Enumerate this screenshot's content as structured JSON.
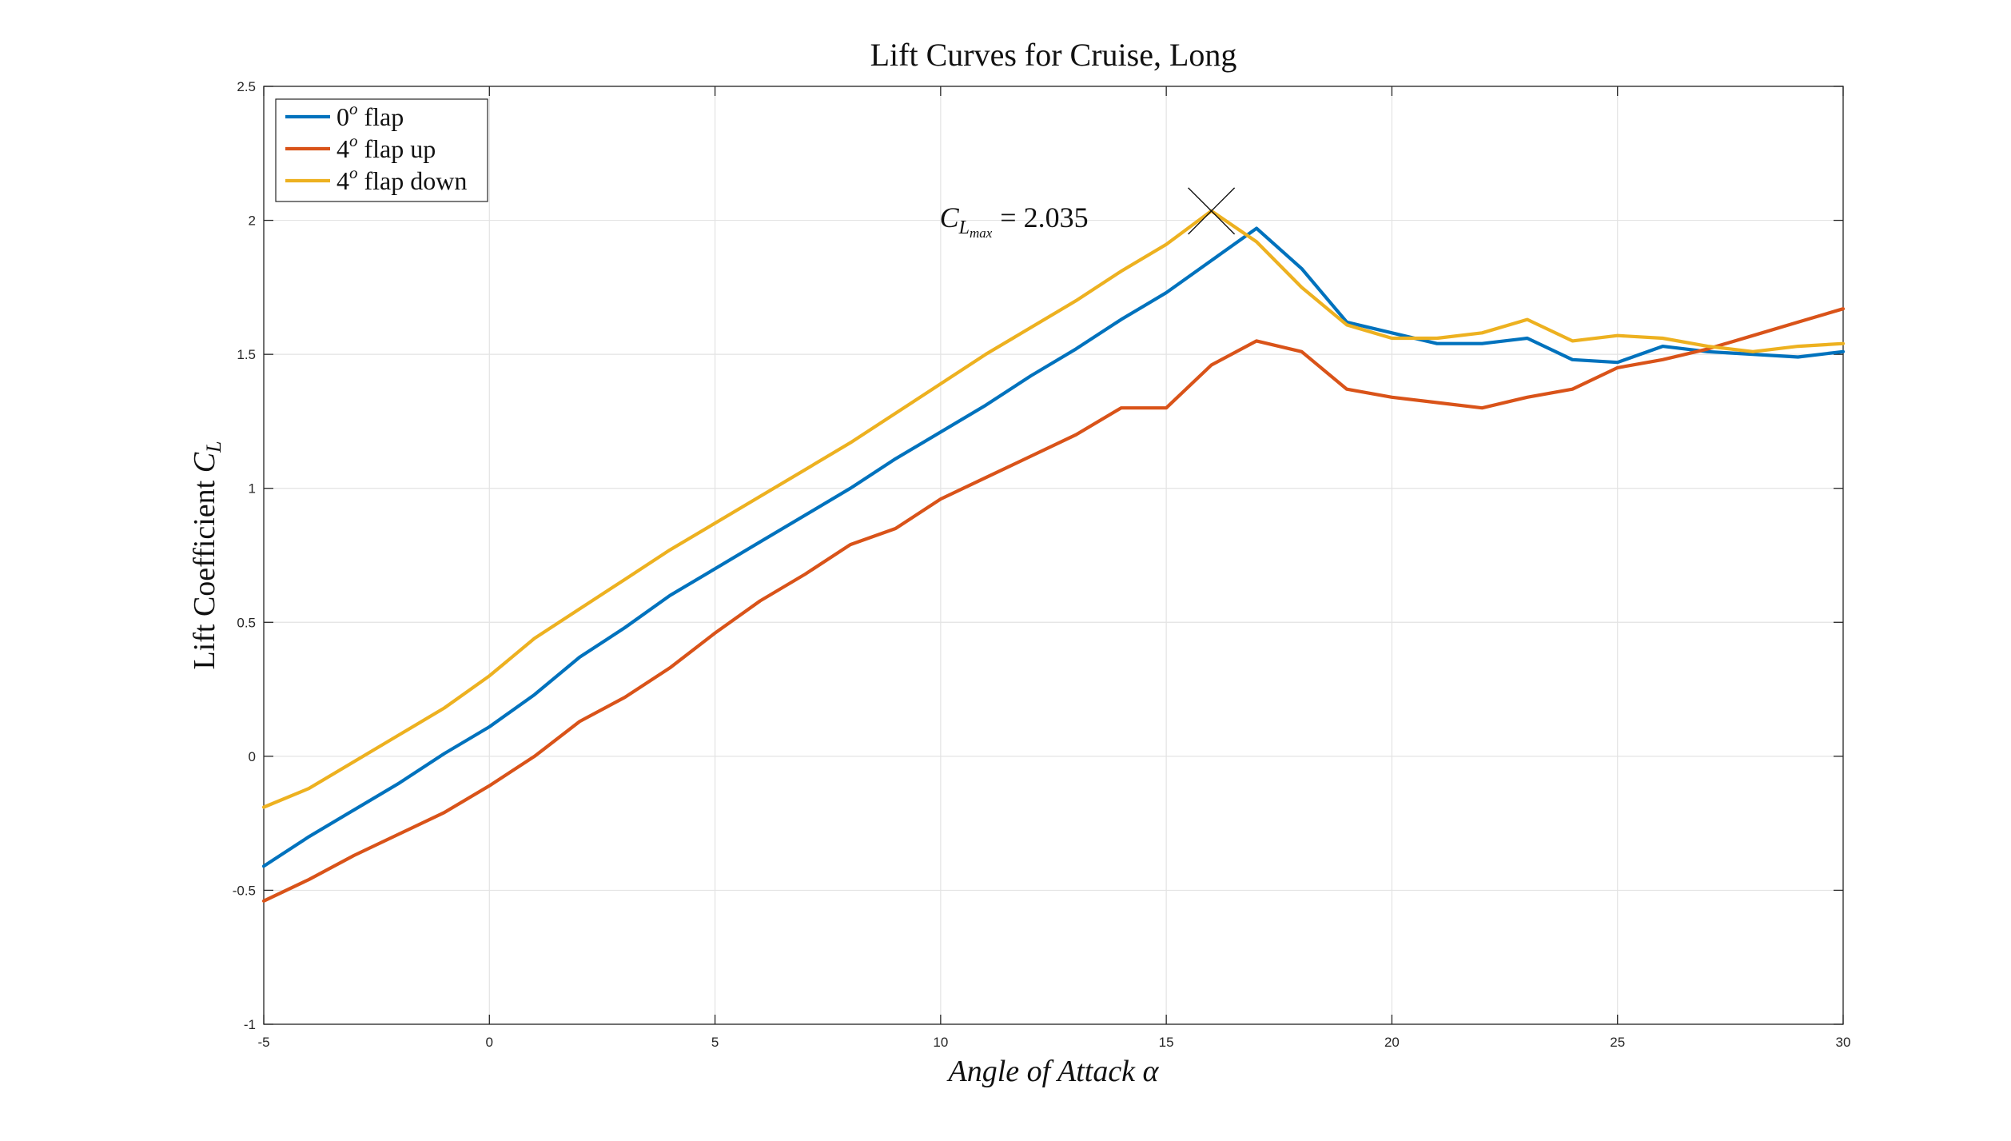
{
  "chart_data": {
    "type": "line",
    "title": "Lift Curves for Cruise, Long",
    "xlabel": "Angle of Attack α",
    "ylabel": "Lift Coefficient C_L",
    "xlim": [
      -5,
      30
    ],
    "ylim": [
      -1,
      2.5
    ],
    "xticks": [
      "-5",
      "0",
      "5",
      "10",
      "15",
      "20",
      "25",
      "30"
    ],
    "yticks": [
      "-1",
      "-0.5",
      "0",
      "0.5",
      "1",
      "1.5",
      "2",
      "2.5"
    ],
    "grid": true,
    "legend_position": "top-left",
    "x": [
      -5,
      -4,
      -3,
      -2,
      -1,
      0,
      1,
      2,
      3,
      4,
      5,
      6,
      7,
      8,
      9,
      10,
      11,
      12,
      13,
      14,
      15,
      16,
      17,
      18,
      19,
      20,
      21,
      22,
      23,
      24,
      25,
      26,
      27,
      28,
      29,
      30
    ],
    "series": [
      {
        "name": "0º flap",
        "name_base": "0",
        "name_sup": "o",
        "name_rest": "flap",
        "color": "#0072BD",
        "values": [
          -0.41,
          -0.3,
          -0.2,
          -0.1,
          0.01,
          0.11,
          0.23,
          0.37,
          0.48,
          0.6,
          0.7,
          0.8,
          0.9,
          1.0,
          1.11,
          1.21,
          1.31,
          1.42,
          1.52,
          1.63,
          1.73,
          1.85,
          1.97,
          1.82,
          1.62,
          1.58,
          1.54,
          1.54,
          1.56,
          1.48,
          1.47,
          1.53,
          1.51,
          1.5,
          1.49,
          1.51
        ]
      },
      {
        "name": "4º flap up",
        "name_base": "4",
        "name_sup": "o",
        "name_rest": "flap up",
        "color": "#D95319",
        "values": [
          -0.54,
          -0.46,
          -0.37,
          -0.29,
          -0.21,
          -0.11,
          0.0,
          0.13,
          0.22,
          0.33,
          0.46,
          0.58,
          0.68,
          0.79,
          0.85,
          0.96,
          1.04,
          1.12,
          1.2,
          1.3,
          1.3,
          1.46,
          1.55,
          1.51,
          1.37,
          1.34,
          1.32,
          1.3,
          1.34,
          1.37,
          1.45,
          1.48,
          1.52,
          1.57,
          1.62,
          1.67
        ]
      },
      {
        "name": "4º flap down",
        "name_base": "4",
        "name_sup": "o",
        "name_rest": "flap down",
        "color": "#EDB120",
        "values": [
          -0.19,
          -0.12,
          -0.02,
          0.08,
          0.18,
          0.3,
          0.44,
          0.55,
          0.66,
          0.77,
          0.87,
          0.97,
          1.07,
          1.17,
          1.28,
          1.39,
          1.5,
          1.6,
          1.7,
          1.81,
          1.91,
          2.035,
          1.92,
          1.75,
          1.61,
          1.56,
          1.56,
          1.58,
          1.63,
          1.55,
          1.57,
          1.56,
          1.53,
          1.51,
          1.53,
          1.54
        ]
      }
    ],
    "annotation": {
      "label_main": "C",
      "label_sub": "L",
      "label_subsub": "max",
      "label_rest": "= 2.035",
      "x": 16,
      "y": 2.035
    }
  }
}
